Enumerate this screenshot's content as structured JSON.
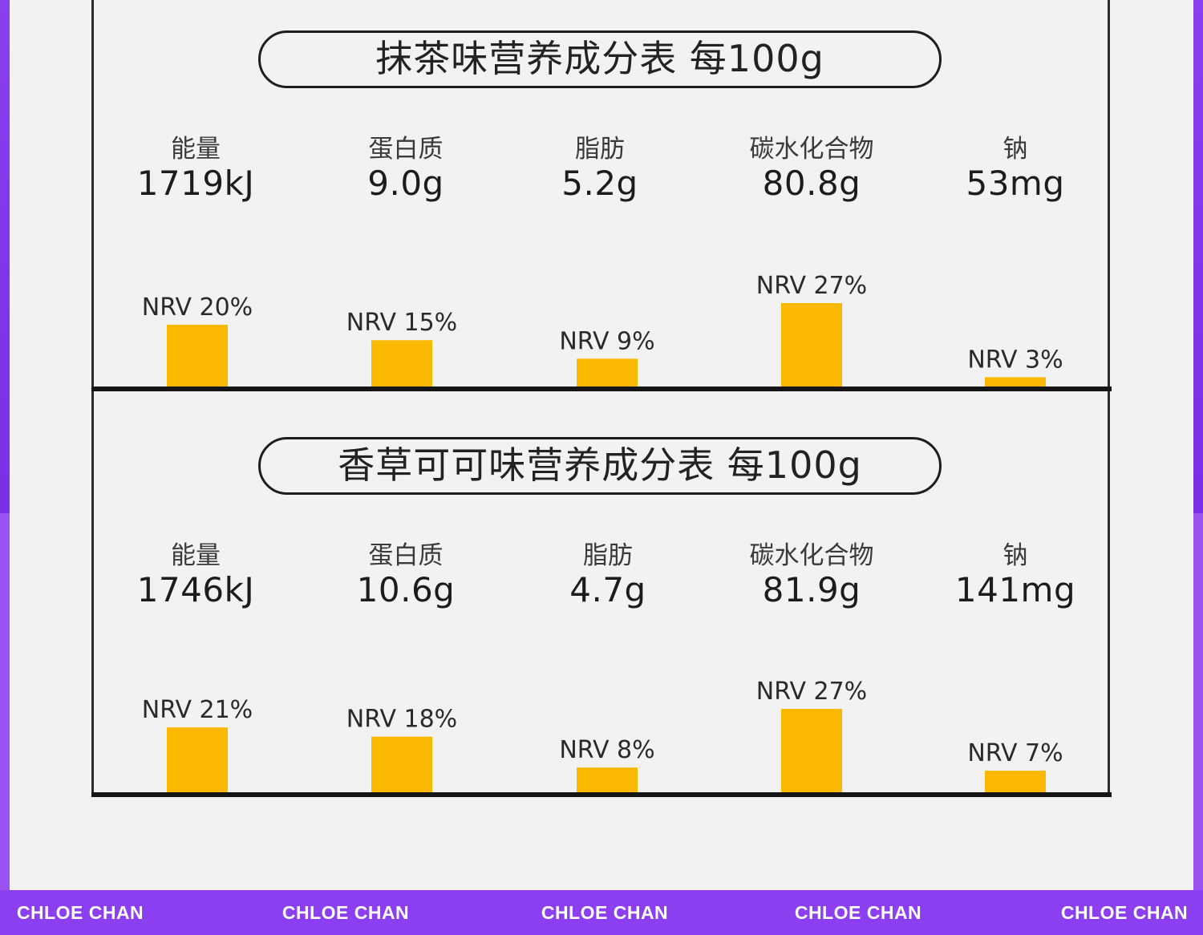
{
  "colors": {
    "bar": "#fbb800",
    "brand_band": "#8b3ff0",
    "background": "#f2f2f3",
    "ink": "#151515"
  },
  "tables": [
    {
      "title": "抹茶味营养成分表 每100g",
      "nutrients": [
        {
          "label": "能量",
          "value": "1719kJ"
        },
        {
          "label": "蛋白质",
          "value": "9.0g"
        },
        {
          "label": "脂肪",
          "value": "5.2g"
        },
        {
          "label": "碳水化合物",
          "value": "80.8g"
        },
        {
          "label": "钠",
          "value": "53mg"
        }
      ]
    },
    {
      "title": "香草可可味营养成分表 每100g",
      "nutrients": [
        {
          "label": "能量",
          "value": "1746kJ"
        },
        {
          "label": "蛋白质",
          "value": "10.6g"
        },
        {
          "label": "脂肪",
          "value": "4.7g"
        },
        {
          "label": "碳水化合物",
          "value": "81.9g"
        },
        {
          "label": "钠",
          "value": "141mg"
        }
      ]
    }
  ],
  "chart_data": [
    {
      "type": "bar",
      "categories": [
        "能量",
        "蛋白质",
        "脂肪",
        "碳水化合物",
        "钠"
      ],
      "values": [
        20,
        15,
        9,
        27,
        3
      ],
      "data_labels": [
        "NRV 20%",
        "NRV 15%",
        "NRV 9%",
        "NRV 27%",
        "NRV 3%"
      ],
      "ylim": [
        0,
        27
      ],
      "grid": false
    },
    {
      "type": "bar",
      "categories": [
        "能量",
        "蛋白质",
        "脂肪",
        "碳水化合物",
        "钠"
      ],
      "values": [
        21,
        18,
        8,
        27,
        7
      ],
      "data_labels": [
        "NRV 21%",
        "NRV 18%",
        "NRV 8%",
        "NRV 27%",
        "NRV 7%"
      ],
      "ylim": [
        0,
        27
      ],
      "grid": false
    }
  ],
  "footer": {
    "brand_items": [
      "CHLOE CHAN",
      "CHLOE CHAN",
      "CHLOE CHAN",
      "CHLOE CHAN",
      "CHLOE CHAN"
    ]
  }
}
